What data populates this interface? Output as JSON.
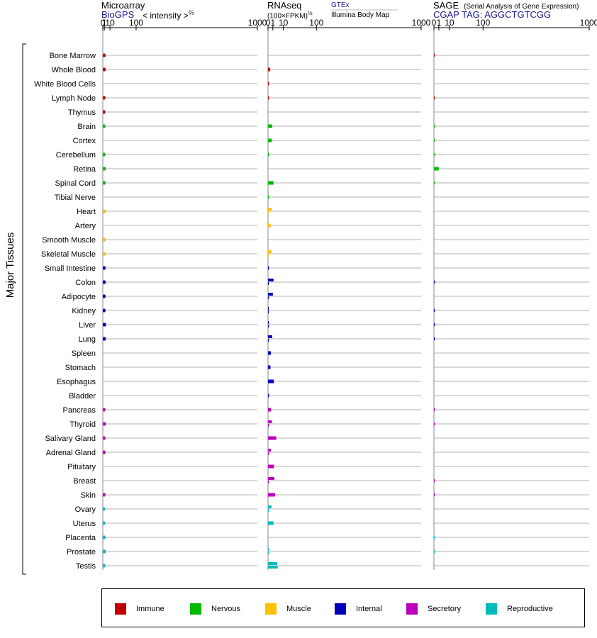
{
  "headers": {
    "microarray": {
      "title": "Microarray",
      "source": "BioGPS",
      "metric": "< intensity >",
      "exponent": "⅔"
    },
    "rnaseq": {
      "title": "RNAseq",
      "metric": "(100×FPKM)",
      "exponent": "½",
      "source_top": "GTEx",
      "source_bottom": "Illumina Body Map"
    },
    "sage": {
      "title": "SAGE",
      "subtitle": "(Serial Analysis of Gene Expression)",
      "source": "CGAP",
      "tag": "TAG: AGGCTGTCGG"
    }
  },
  "y_axis_label": "Major Tissues",
  "colors": {
    "Immune": "#c00000",
    "Nervous": "#00bb00",
    "Muscle": "#ffc000",
    "Internal": "#0000bb",
    "Secretory": "#bb00bb",
    "Reproductive": "#00bbbb"
  },
  "legend": [
    {
      "label": "Immune",
      "color": "#c00000"
    },
    {
      "label": "Nervous",
      "color": "#00bb00"
    },
    {
      "label": "Muscle",
      "color": "#ffc000"
    },
    {
      "label": "Internal",
      "color": "#0000bb"
    },
    {
      "label": "Secretory",
      "color": "#bb00bb"
    },
    {
      "label": "Reproductive",
      "color": "#00bbbb"
    }
  ],
  "chart_data": {
    "type": "bar",
    "orientation": "horizontal",
    "x_scale": "power",
    "ticks": [
      "0",
      "1",
      "10",
      "100",
      "1000"
    ],
    "tick_values": [
      0,
      1,
      10,
      100,
      1000
    ],
    "panels": [
      {
        "key": "microarray",
        "exponent": 0.6667,
        "xlim": [
          0,
          1000
        ]
      },
      {
        "key": "rnaseq",
        "exponent": 0.5,
        "xlim": [
          0,
          1000
        ]
      },
      {
        "key": "sage",
        "exponent": 0.5,
        "xlim": [
          0,
          1000
        ]
      }
    ],
    "tissues": [
      {
        "name": "Bone Marrow",
        "group": "Immune",
        "microarray": 2.4,
        "rnaseq": [],
        "sage": 0.02
      },
      {
        "name": "Whole Blood",
        "group": "Immune",
        "microarray": 2.5,
        "rnaseq": [
          0.2
        ],
        "sage": 0
      },
      {
        "name": "White Blood Cells",
        "group": "Immune",
        "microarray": 0,
        "rnaseq": [
          0.01
        ],
        "sage": 0
      },
      {
        "name": "Lymph Node",
        "group": "Immune",
        "microarray": 2.2,
        "rnaseq": [
          0.01
        ],
        "sage": 0.01
      },
      {
        "name": "Thymus",
        "group": "Immune",
        "microarray": 2.0,
        "rnaseq": [],
        "sage": 0
      },
      {
        "name": "Brain",
        "group": "Nervous",
        "microarray": 2.1,
        "rnaseq": [
          0.75
        ],
        "sage": 0.01
      },
      {
        "name": "Cortex",
        "group": "Nervous",
        "microarray": 0,
        "rnaseq": [
          0.6
        ],
        "sage": 0.01
      },
      {
        "name": "Cerebellum",
        "group": "Nervous",
        "microarray": 2.1,
        "rnaseq": [
          0.01
        ],
        "sage": 0.01
      },
      {
        "name": "Retina",
        "group": "Nervous",
        "microarray": 2.6,
        "rnaseq": [],
        "sage": 1.0
      },
      {
        "name": "Spinal Cord",
        "group": "Nervous",
        "microarray": 2.4,
        "rnaseq": [
          1.3
        ],
        "sage": 0.01
      },
      {
        "name": "Tibial Nerve",
        "group": "Nervous",
        "microarray": 0,
        "rnaseq": [
          0.01
        ],
        "sage": 0
      },
      {
        "name": "Heart",
        "group": "Muscle",
        "microarray": 2.8,
        "rnaseq": [
          0.6,
          0.01
        ],
        "sage": 0
      },
      {
        "name": "Artery",
        "group": "Muscle",
        "microarray": 0,
        "rnaseq": [
          0.3
        ],
        "sage": 0
      },
      {
        "name": "Smooth Muscle",
        "group": "Muscle",
        "microarray": 2.6,
        "rnaseq": [],
        "sage": 0
      },
      {
        "name": "Skeletal Muscle",
        "group": "Muscle",
        "microarray": 2.7,
        "rnaseq": [
          0.5,
          0.01
        ],
        "sage": 0
      },
      {
        "name": "Small Intestine",
        "group": "Internal",
        "microarray": 2.3,
        "rnaseq": [
          0.02
        ],
        "sage": 0
      },
      {
        "name": "Colon",
        "group": "Internal",
        "microarray": 2.4,
        "rnaseq": [
          1.3,
          0.02
        ],
        "sage": 0.01
      },
      {
        "name": "Adipocyte",
        "group": "Internal",
        "microarray": 2.3,
        "rnaseq": [
          1.0,
          0.02
        ],
        "sage": 0
      },
      {
        "name": "Kidney",
        "group": "Internal",
        "microarray": 2.2,
        "rnaseq": [
          0.02,
          0.02
        ],
        "sage": 0.01
      },
      {
        "name": "Liver",
        "group": "Internal",
        "microarray": 3.0,
        "rnaseq": [
          0.02,
          0.02
        ],
        "sage": 0.01
      },
      {
        "name": "Lung",
        "group": "Internal",
        "microarray": 2.6,
        "rnaseq": [
          0.75,
          0.02
        ],
        "sage": 0.01
      },
      {
        "name": "Spleen",
        "group": "Internal",
        "microarray": 0,
        "rnaseq": [
          0.35
        ],
        "sage": 0
      },
      {
        "name": "Stomach",
        "group": "Internal",
        "microarray": 0,
        "rnaseq": [
          0.25
        ],
        "sage": 0
      },
      {
        "name": "Esophagus",
        "group": "Internal",
        "microarray": 0,
        "rnaseq": [
          1.4
        ],
        "sage": 0
      },
      {
        "name": "Bladder",
        "group": "Internal",
        "microarray": 0,
        "rnaseq": [
          0.02
        ],
        "sage": 0
      },
      {
        "name": "Pancreas",
        "group": "Secretory",
        "microarray": 2.1,
        "rnaseq": [
          0.4
        ],
        "sage": 0.01
      },
      {
        "name": "Thyroid",
        "group": "Secretory",
        "microarray": 2.7,
        "rnaseq": [
          0.65,
          0.02
        ],
        "sage": 0.01
      },
      {
        "name": "Salivary Gland",
        "group": "Secretory",
        "microarray": 2.2,
        "rnaseq": [
          2.9
        ],
        "sage": 0
      },
      {
        "name": "Adrenal Gland",
        "group": "Secretory",
        "microarray": 2.2,
        "rnaseq": [
          0.35,
          0.02
        ],
        "sage": 0
      },
      {
        "name": "Pituitary",
        "group": "Secretory",
        "microarray": 0,
        "rnaseq": [
          1.5
        ],
        "sage": 0
      },
      {
        "name": "Breast",
        "group": "Secretory",
        "microarray": 0,
        "rnaseq": [
          1.7,
          0.02
        ],
        "sage": 0.01
      },
      {
        "name": "Skin",
        "group": "Secretory",
        "microarray": 2.2,
        "rnaseq": [
          2.1
        ],
        "sage": 0.01
      },
      {
        "name": "Ovary",
        "group": "Reproductive",
        "microarray": 1.8,
        "rnaseq": [
          0.5,
          0.02
        ],
        "sage": 0
      },
      {
        "name": "Uterus",
        "group": "Reproductive",
        "microarray": 1.9,
        "rnaseq": [
          1.3
        ],
        "sage": 0
      },
      {
        "name": "Placenta",
        "group": "Reproductive",
        "microarray": 2.4,
        "rnaseq": [],
        "sage": 0.01
      },
      {
        "name": "Prostate",
        "group": "Reproductive",
        "microarray": 2.6,
        "rnaseq": [
          0.02,
          0.02
        ],
        "sage": 0.01
      },
      {
        "name": "Testis",
        "group": "Reproductive",
        "microarray": 2.1,
        "rnaseq": [
          3.6,
          4.0
        ],
        "sage": 0
      }
    ]
  }
}
